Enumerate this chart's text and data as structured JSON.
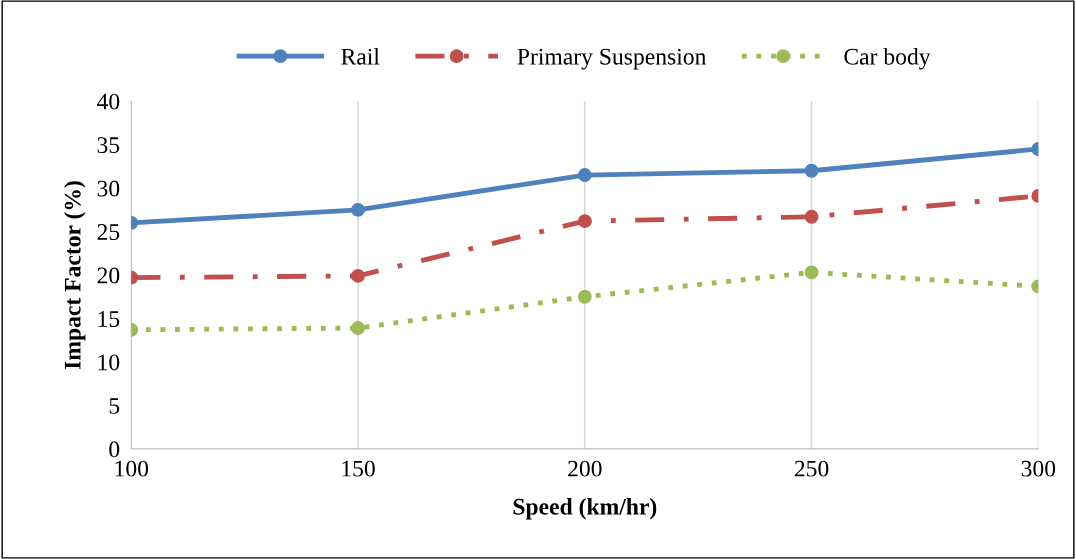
{
  "chart_data": {
    "type": "line",
    "xlabel": "Speed (km/hr)",
    "ylabel": "Impact Factor (%)",
    "x": [
      100,
      150,
      200,
      250,
      300
    ],
    "series": [
      {
        "name": "Rail",
        "color": "#4f81bd",
        "line_style": "solid",
        "values": [
          26.0,
          27.5,
          31.5,
          32.0,
          34.5
        ]
      },
      {
        "name": "Primary Suspension",
        "color": "#c0504d",
        "line_style": "dashdot",
        "values": [
          19.7,
          19.9,
          26.2,
          26.7,
          29.1
        ]
      },
      {
        "name": "Car body",
        "color": "#9bbb59",
        "line_style": "dotted",
        "values": [
          13.7,
          13.9,
          17.5,
          20.3,
          18.7
        ]
      }
    ],
    "xlim": [
      100,
      300
    ],
    "xticks": [
      100,
      150,
      200,
      250,
      300
    ],
    "ylim": [
      0,
      40
    ],
    "yticks": [
      0,
      5,
      10,
      15,
      20,
      25,
      30,
      35,
      40
    ],
    "grid": "x",
    "legend": "top",
    "marker": "circle"
  }
}
